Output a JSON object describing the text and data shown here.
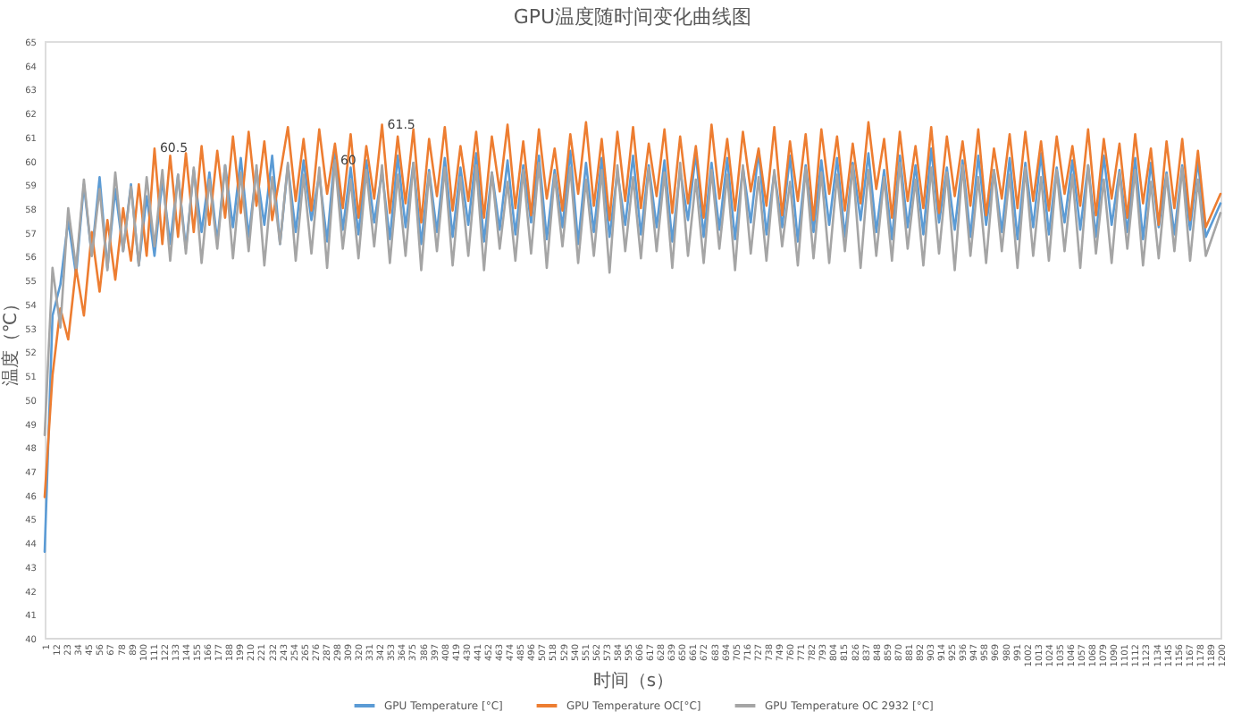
{
  "chart_data": {
    "type": "line",
    "title": "GPU温度随时间变化曲线图",
    "xlabel": "时间（s）",
    "ylabel": "温度（℃）",
    "x": [
      1,
      9,
      17,
      25,
      33,
      41,
      49,
      57,
      65,
      73,
      81,
      89,
      97,
      105,
      113,
      121,
      129,
      137,
      145,
      153,
      161,
      169,
      177,
      185,
      193,
      201,
      209,
      217,
      225,
      233,
      241,
      249,
      257,
      265,
      273,
      281,
      289,
      297,
      305,
      313,
      321,
      329,
      337,
      345,
      353,
      361,
      369,
      377,
      385,
      393,
      401,
      409,
      417,
      425,
      433,
      441,
      449,
      457,
      465,
      473,
      481,
      489,
      497,
      505,
      513,
      521,
      529,
      537,
      545,
      553,
      561,
      569,
      577,
      585,
      593,
      601,
      609,
      617,
      625,
      633,
      641,
      649,
      657,
      665,
      673,
      681,
      689,
      697,
      705,
      713,
      721,
      729,
      737,
      745,
      753,
      761,
      769,
      777,
      785,
      793,
      801,
      809,
      817,
      825,
      833,
      841,
      849,
      857,
      865,
      873,
      881,
      889,
      897,
      905,
      913,
      921,
      929,
      937,
      945,
      953,
      961,
      969,
      977,
      985,
      993,
      1001,
      1009,
      1017,
      1025,
      1033,
      1041,
      1049,
      1057,
      1065,
      1073,
      1081,
      1089,
      1097,
      1105,
      1113,
      1121,
      1129,
      1137,
      1145,
      1153,
      1161,
      1169,
      1177,
      1185,
      1200
    ],
    "xlim": [
      1,
      1200
    ],
    "xticks": [
      1,
      12,
      23,
      34,
      45,
      56,
      67,
      78,
      89,
      100,
      111,
      122,
      133,
      144,
      155,
      166,
      177,
      188,
      199,
      210,
      221,
      232,
      243,
      254,
      265,
      276,
      287,
      298,
      309,
      320,
      331,
      342,
      353,
      364,
      375,
      386,
      397,
      408,
      419,
      430,
      441,
      452,
      463,
      474,
      485,
      496,
      507,
      518,
      529,
      540,
      551,
      562,
      573,
      584,
      595,
      606,
      617,
      628,
      639,
      650,
      661,
      672,
      683,
      694,
      705,
      716,
      727,
      738,
      749,
      760,
      771,
      782,
      793,
      804,
      815,
      826,
      837,
      848,
      859,
      870,
      881,
      892,
      903,
      914,
      925,
      936,
      947,
      958,
      969,
      980,
      991,
      1002,
      1013,
      1024,
      1035,
      1046,
      1057,
      1068,
      1079,
      1090,
      1101,
      1112,
      1123,
      1134,
      1145,
      1156,
      1167,
      1178,
      1189,
      1200
    ],
    "ylim": [
      40,
      65
    ],
    "yticks": [
      40,
      41,
      42,
      43,
      44,
      45,
      46,
      47,
      48,
      49,
      50,
      51,
      52,
      53,
      54,
      55,
      56,
      57,
      58,
      59,
      60,
      61,
      62,
      63,
      64,
      65
    ],
    "series": [
      {
        "name": "GPU Temperature [°C]",
        "color": "#5b9bd5",
        "values": [
          43.6,
          53.5,
          54.8,
          57.5,
          55.2,
          59.0,
          56.0,
          59.3,
          55.5,
          58.8,
          56.2,
          59.0,
          55.6,
          58.5,
          56.0,
          59.2,
          56.5,
          59.4,
          56.3,
          59.6,
          57.0,
          59.5,
          56.6,
          59.8,
          57.2,
          60.1,
          56.8,
          59.6,
          57.3,
          60.2,
          56.5,
          59.8,
          57.0,
          60.0,
          57.5,
          59.4,
          56.6,
          60.3,
          57.1,
          59.7,
          56.9,
          60.0,
          57.4,
          59.5,
          56.7,
          60.2,
          57.2,
          59.9,
          56.5,
          59.6,
          57.0,
          60.1,
          56.8,
          59.7,
          57.3,
          60.3,
          56.6,
          59.5,
          57.1,
          60.0,
          56.9,
          59.8,
          57.4,
          60.2,
          56.7,
          59.6,
          57.2,
          60.4,
          56.5,
          59.9,
          57.0,
          60.1,
          56.8,
          59.5,
          57.3,
          60.2,
          56.9,
          59.8,
          57.2,
          60.0,
          56.6,
          59.6,
          57.5,
          60.3,
          56.8,
          59.9,
          57.1,
          60.1,
          56.7,
          59.7,
          57.4,
          60.4,
          56.9,
          59.5,
          57.2,
          60.2,
          56.6,
          59.8,
          57.0,
          60.0,
          57.3,
          60.1,
          56.8,
          59.9,
          57.5,
          60.3,
          57.0,
          59.6,
          56.7,
          60.2,
          57.2,
          59.8,
          56.9,
          60.5,
          57.4,
          59.7,
          57.1,
          60.0,
          56.8,
          60.2,
          57.3,
          59.6,
          57.0,
          60.1,
          56.7,
          59.9,
          57.2,
          60.3,
          56.9,
          59.7,
          57.4,
          60.0,
          57.1,
          59.8,
          56.8,
          60.2,
          57.3,
          59.6,
          57.0,
          60.1,
          56.7,
          59.9,
          57.2,
          59.5,
          56.9,
          59.8,
          57.1,
          60.0,
          56.8,
          58.2
        ]
      },
      {
        "name": "GPU Temperature OC[°C]",
        "color": "#ed7d31",
        "values": [
          45.9,
          51.0,
          53.8,
          52.5,
          55.5,
          53.5,
          57.0,
          54.5,
          57.5,
          55.0,
          58.0,
          55.8,
          59.0,
          56.0,
          60.5,
          56.5,
          60.2,
          56.8,
          60.3,
          57.0,
          60.6,
          57.3,
          60.4,
          57.6,
          61.0,
          57.8,
          61.2,
          58.1,
          60.8,
          57.5,
          59.4,
          61.4,
          58.3,
          60.9,
          57.9,
          61.3,
          58.6,
          60.7,
          58.0,
          61.1,
          57.6,
          60.6,
          58.4,
          61.5,
          57.8,
          61.0,
          58.2,
          61.3,
          57.4,
          60.9,
          58.5,
          61.4,
          57.9,
          60.6,
          58.3,
          61.2,
          57.6,
          61.0,
          58.7,
          61.5,
          58.0,
          60.8,
          57.7,
          61.3,
          58.4,
          60.5,
          57.9,
          61.1,
          58.6,
          61.6,
          58.1,
          60.9,
          57.5,
          61.2,
          58.3,
          61.4,
          58.0,
          60.7,
          58.5,
          61.3,
          57.8,
          61.0,
          58.2,
          60.6,
          57.6,
          61.5,
          58.4,
          60.9,
          57.9,
          61.2,
          58.7,
          60.5,
          58.1,
          61.4,
          57.7,
          60.8,
          58.3,
          61.1,
          57.5,
          61.3,
          58.6,
          61.0,
          57.9,
          60.7,
          58.2,
          61.6,
          58.8,
          60.9,
          57.6,
          61.2,
          58.3,
          60.6,
          58.0,
          61.4,
          57.8,
          61.0,
          58.5,
          60.8,
          58.1,
          61.3,
          57.7,
          60.5,
          58.4,
          61.1,
          58.0,
          61.2,
          58.3,
          60.8,
          57.9,
          61.0,
          58.6,
          60.6,
          58.1,
          61.3,
          57.7,
          60.9,
          58.4,
          60.7,
          57.6,
          61.1,
          58.2,
          60.5,
          57.3,
          60.8,
          58.0,
          60.9,
          57.5,
          60.4,
          57.2,
          58.6
        ]
      },
      {
        "name": "GPU Temperature OC 2932 [°C]",
        "color": "#a5a5a5",
        "values": [
          48.5,
          55.5,
          53.0,
          58.0,
          55.5,
          59.2,
          56.0,
          58.8,
          55.4,
          59.5,
          56.2,
          58.9,
          55.6,
          59.3,
          56.4,
          59.6,
          55.8,
          59.4,
          56.1,
          59.7,
          55.7,
          59.2,
          56.3,
          59.8,
          55.9,
          59.5,
          56.2,
          59.8,
          55.6,
          59.3,
          56.5,
          59.9,
          55.8,
          59.4,
          56.1,
          59.7,
          55.5,
          60.0,
          56.3,
          59.2,
          55.9,
          59.6,
          56.4,
          59.8,
          55.7,
          59.4,
          56.0,
          59.9,
          55.4,
          59.5,
          56.2,
          59.7,
          55.6,
          59.3,
          56.0,
          59.8,
          55.4,
          59.5,
          56.3,
          59.1,
          55.8,
          59.6,
          56.1,
          59.9,
          55.5,
          59.4,
          56.4,
          59.7,
          55.7,
          59.2,
          56.0,
          59.6,
          55.3,
          59.8,
          56.2,
          59.3,
          55.9,
          59.7,
          56.2,
          59.5,
          55.5,
          59.9,
          56.0,
          59.2,
          55.7,
          59.6,
          56.3,
          59.4,
          55.4,
          59.8,
          56.1,
          59.3,
          55.8,
          59.6,
          56.4,
          59.1,
          55.6,
          59.7,
          55.9,
          59.5,
          55.7,
          59.4,
          56.2,
          59.8,
          55.5,
          59.6,
          56.0,
          59.3,
          55.8,
          59.9,
          56.3,
          59.2,
          55.6,
          59.7,
          56.1,
          59.5,
          55.4,
          59.8,
          56.0,
          59.3,
          55.7,
          59.6,
          56.2,
          59.4,
          55.5,
          59.7,
          56.0,
          59.3,
          55.8,
          59.6,
          56.2,
          59.4,
          55.5,
          59.8,
          56.1,
          59.2,
          55.7,
          59.5,
          56.3,
          59.6,
          55.6,
          59.1,
          55.9,
          59.4,
          56.2,
          59.7,
          55.8,
          59.2,
          56.0,
          57.8
        ]
      }
    ],
    "annotations": [
      {
        "text": "60.5",
        "x": 113,
        "y": 60.5
      },
      {
        "text": "60",
        "x": 297,
        "y": 60
      },
      {
        "text": "61.5",
        "x": 345,
        "y": 61.5
      }
    ],
    "legend": "bottom",
    "grid": false
  }
}
